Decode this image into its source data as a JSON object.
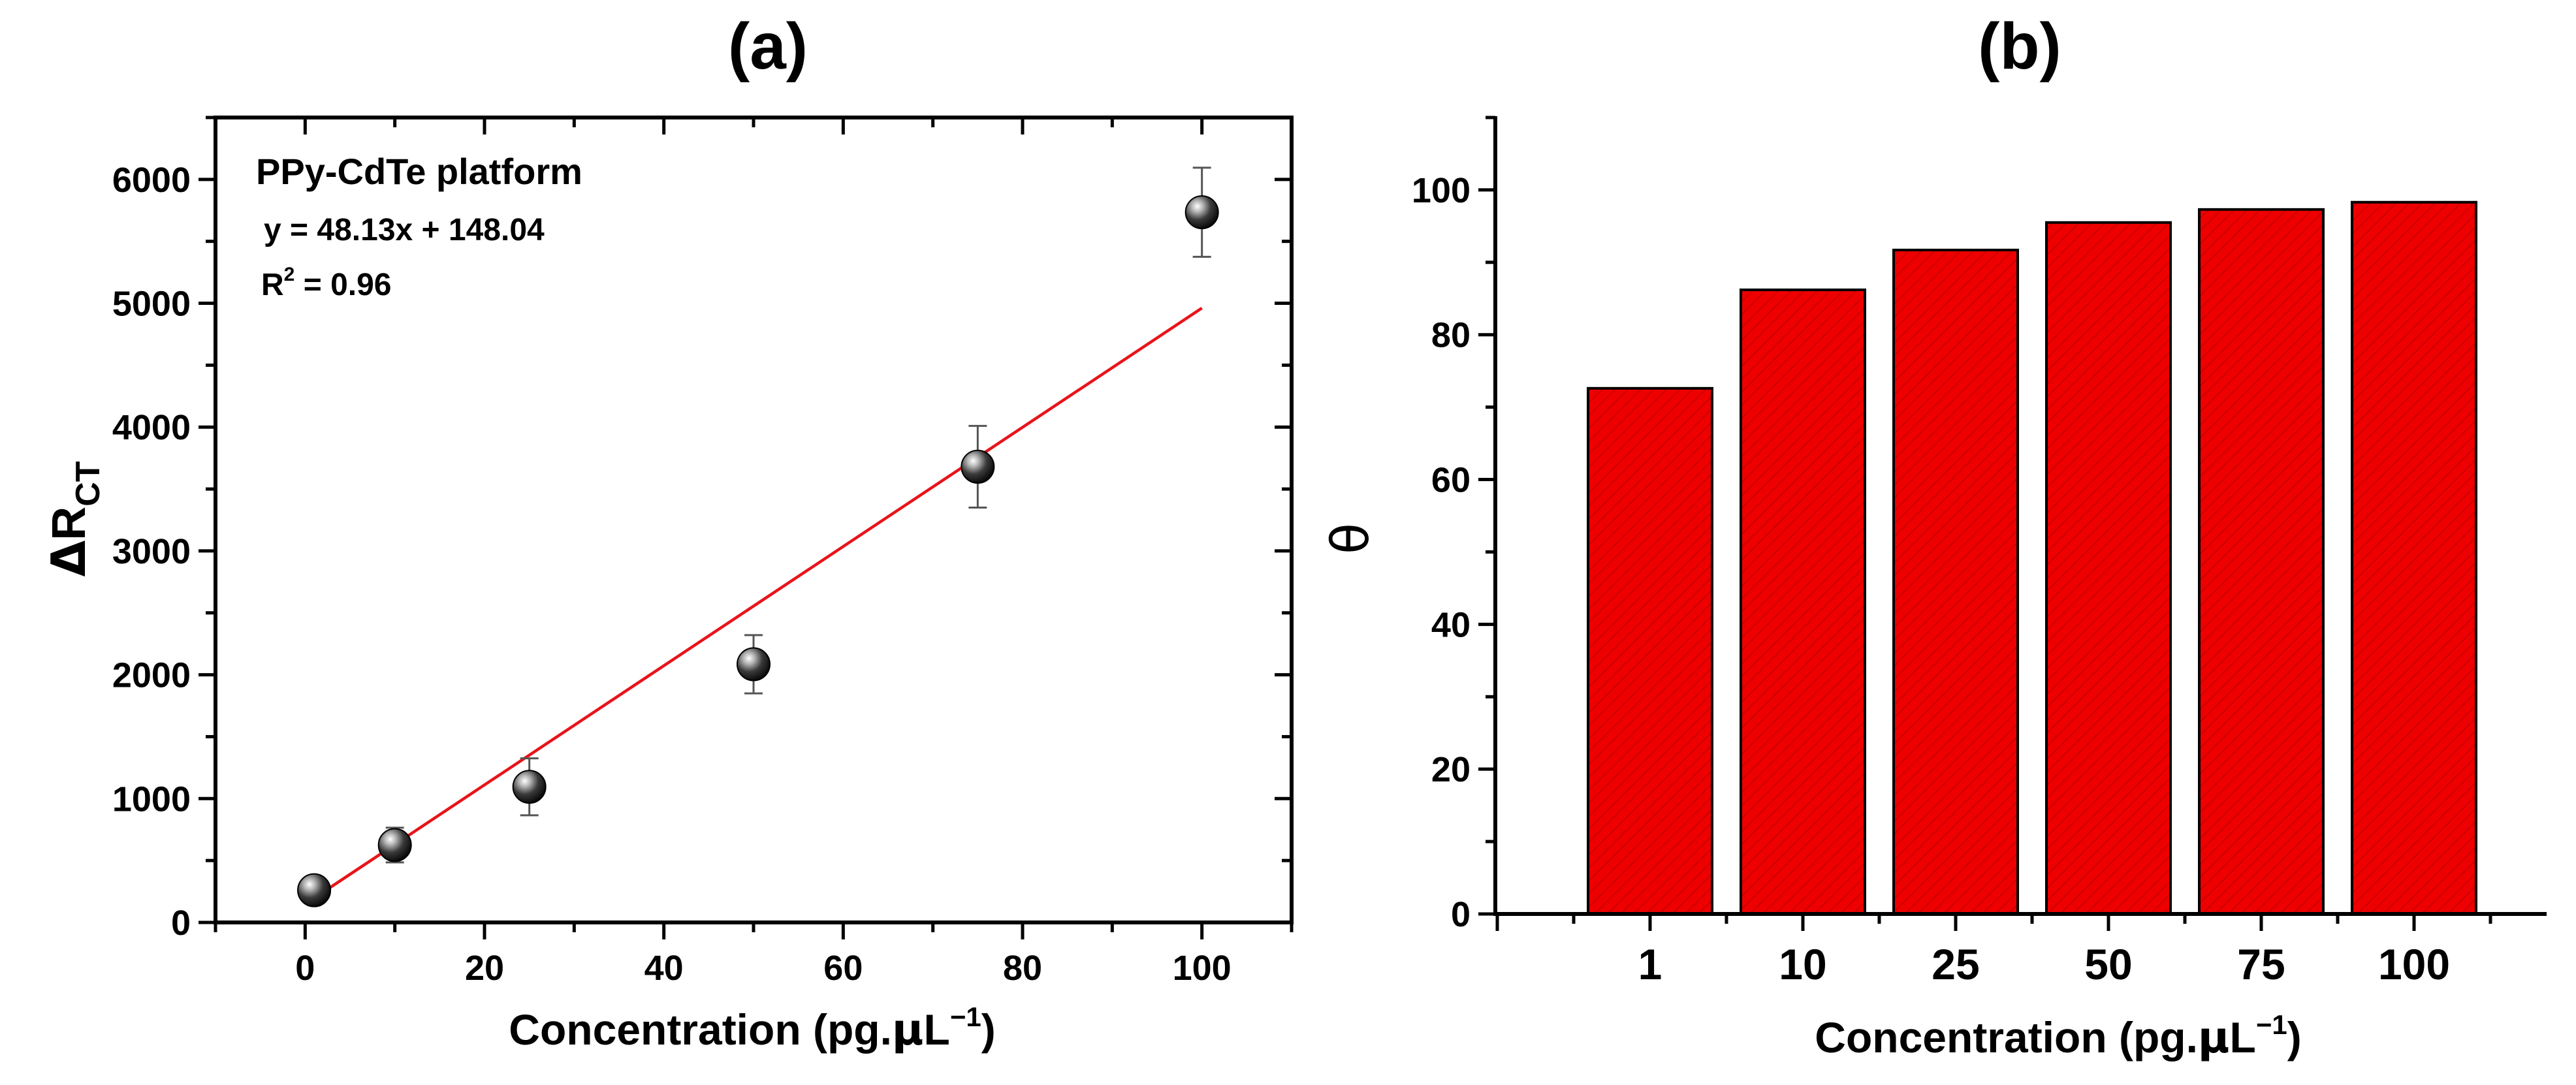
{
  "chart_data": [
    {
      "type": "scatter",
      "panel_label": "(a)",
      "annotation_title": "PPy-CdTe platform",
      "equation": "y = 48.13x + 148.04",
      "r2_label": "R",
      "r2_sup": "2",
      "r2_value": " = 0.96",
      "fit": {
        "slope": 48.13,
        "intercept": 148.04,
        "x_range": [
          1,
          100
        ],
        "color": "#e8141a"
      },
      "xlabel": "Concentration (pg.",
      "xlabel_mu": "μ",
      "xlabel_unit": "L",
      "xlabel_sup": "−1",
      "xlabel_close": ")",
      "ylabel_delta": "Δ",
      "ylabel_main": "R",
      "ylabel_sub": "CT",
      "xlim": [
        -10,
        110
      ],
      "ylim": [
        0,
        6500
      ],
      "x_ticks": [
        0,
        20,
        40,
        60,
        80,
        100
      ],
      "y_ticks": [
        0,
        1000,
        2000,
        3000,
        4000,
        5000,
        6000
      ],
      "x_tick_labels": [
        "0",
        "20",
        "40",
        "60",
        "80",
        "100"
      ],
      "y_tick_labels": [
        "0",
        "1000",
        "2000",
        "3000",
        "4000",
        "5000",
        "6000"
      ],
      "points": [
        {
          "x": 1,
          "y": 260,
          "err": 50
        },
        {
          "x": 10,
          "y": 625,
          "err": 140
        },
        {
          "x": 25,
          "y": 1095,
          "err": 230
        },
        {
          "x": 50,
          "y": 2085,
          "err": 235
        },
        {
          "x": 75,
          "y": 3680,
          "err": 330
        },
        {
          "x": 100,
          "y": 5735,
          "err": 360
        }
      ]
    },
    {
      "type": "bar",
      "panel_label": "(b)",
      "categories": [
        "1",
        "10",
        "25",
        "50",
        "75",
        "100"
      ],
      "values": [
        72.6,
        86.2,
        91.7,
        95.5,
        97.3,
        98.3
      ],
      "bar_color": "#ee0000",
      "xlabel": "Concentration (pg.",
      "xlabel_mu": "μ",
      "xlabel_unit": "L",
      "xlabel_sup": "−1",
      "xlabel_close": ")",
      "ylabel": "θ",
      "ylim": [
        0,
        110
      ],
      "y_ticks": [
        0,
        20,
        40,
        60,
        80,
        100
      ],
      "y_tick_labels": [
        "0",
        "20",
        "40",
        "60",
        "80",
        "100"
      ]
    }
  ]
}
